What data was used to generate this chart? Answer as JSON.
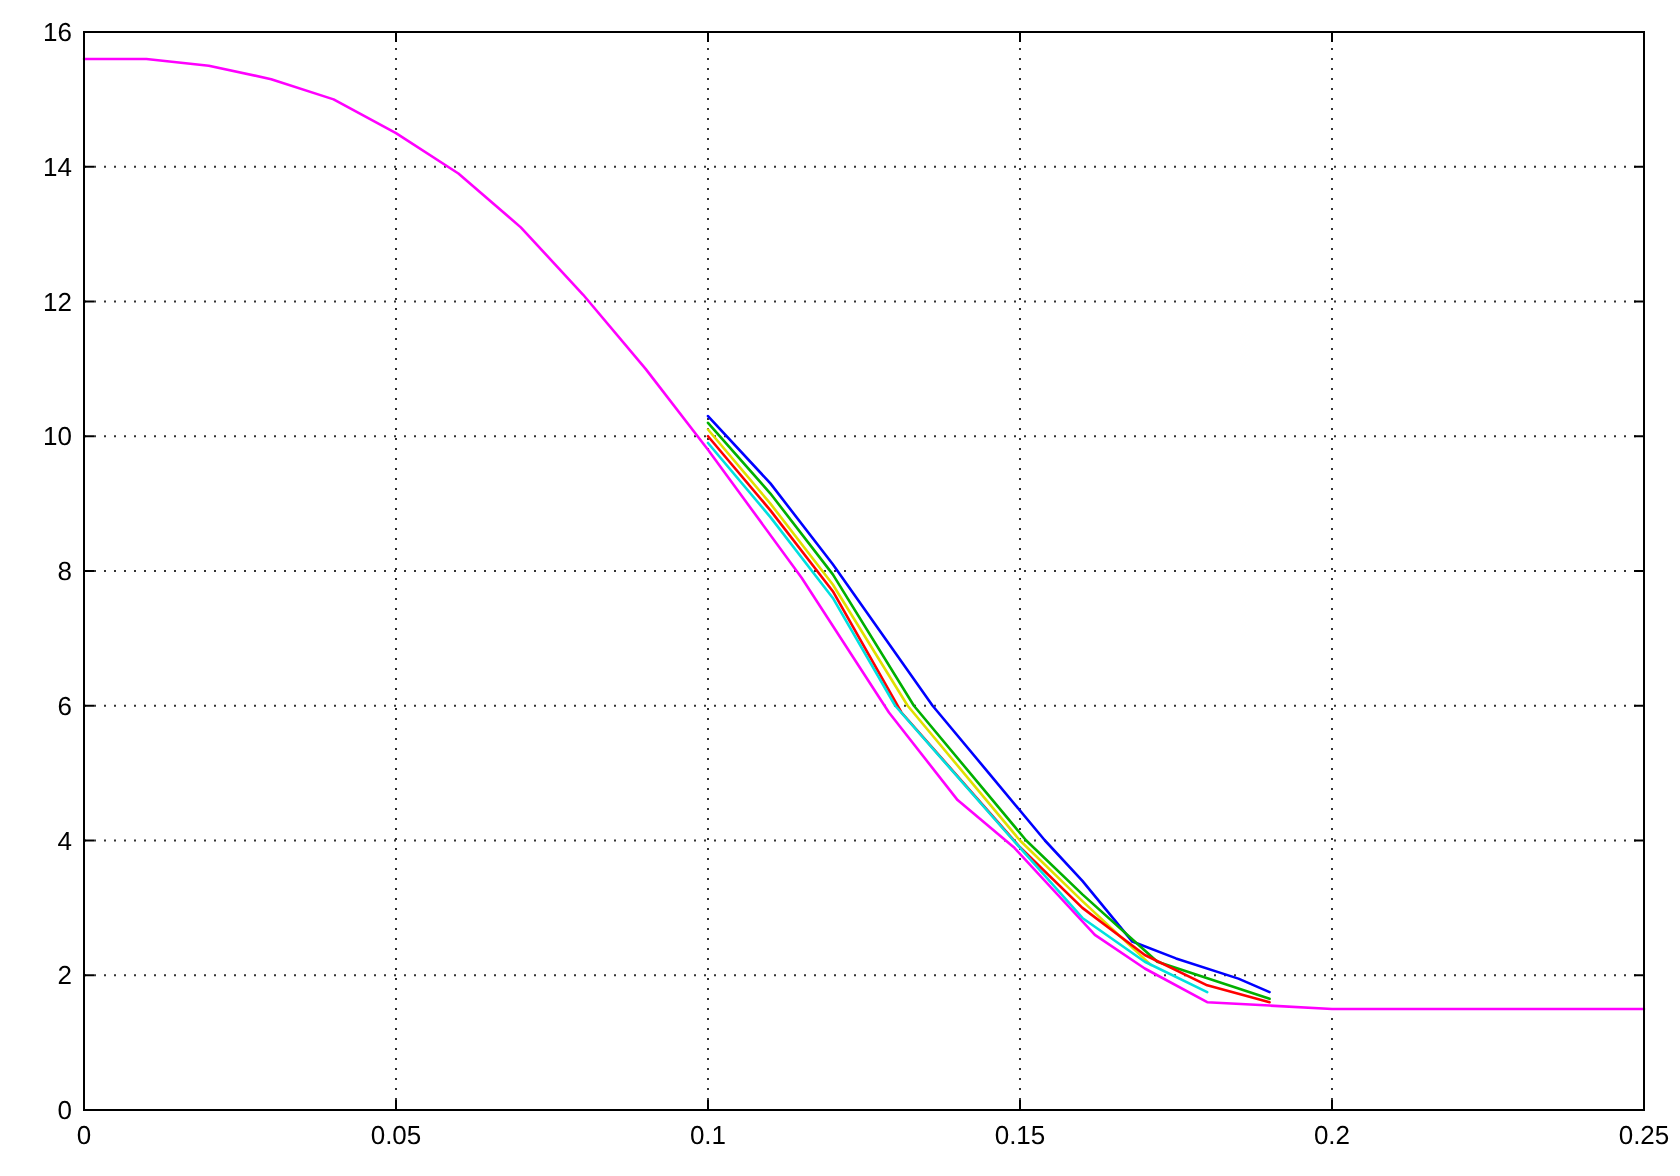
{
  "chart_data": {
    "type": "line",
    "xlim": [
      0,
      0.25
    ],
    "ylim": [
      0,
      16
    ],
    "xticks": [
      0,
      0.05,
      0.1,
      0.15,
      0.2,
      0.25
    ],
    "yticks": [
      0,
      2,
      4,
      6,
      8,
      10,
      12,
      14,
      16
    ],
    "grid": true,
    "line_style": "solid",
    "marker": "none",
    "series": [
      {
        "color": "#0000ff",
        "x": [
          0.1,
          0.11,
          0.12,
          0.136,
          0.145,
          0.154,
          0.16,
          0.168,
          0.175,
          0.185,
          0.19
        ],
        "values": [
          10.3,
          9.3,
          8.1,
          6.0,
          5.0,
          4.0,
          3.4,
          2.5,
          2.25,
          1.95,
          1.75
        ]
      },
      {
        "color": "#00b000",
        "x": [
          0.1,
          0.11,
          0.12,
          0.133,
          0.151,
          0.16,
          0.172,
          0.19
        ],
        "values": [
          10.2,
          9.15,
          7.95,
          6.0,
          4.0,
          3.2,
          2.2,
          1.65
        ]
      },
      {
        "color": "#e0e000",
        "x": [
          0.1,
          0.11,
          0.12,
          0.132,
          0.15,
          0.16,
          0.171
        ],
        "values": [
          10.1,
          9.0,
          7.8,
          6.0,
          4.0,
          3.1,
          2.15
        ]
      },
      {
        "color": "#ff0000",
        "x": [
          0.1,
          0.11,
          0.12,
          0.131,
          0.15,
          0.16,
          0.17,
          0.18,
          0.19
        ],
        "values": [
          10.0,
          8.9,
          7.7,
          5.9,
          3.9,
          3.0,
          2.3,
          1.85,
          1.6
        ]
      },
      {
        "color": "#00e0e0",
        "x": [
          0.1,
          0.11,
          0.12,
          0.13,
          0.148,
          0.16,
          0.17,
          0.18
        ],
        "values": [
          9.9,
          8.8,
          7.6,
          6.0,
          4.1,
          2.85,
          2.2,
          1.75
        ]
      },
      {
        "color": "#ff00ff",
        "x": [
          0,
          0.01,
          0.02,
          0.03,
          0.04,
          0.05,
          0.06,
          0.07,
          0.08,
          0.09,
          0.1,
          0.115,
          0.129,
          0.14,
          0.149,
          0.162,
          0.17,
          0.18,
          0.19,
          0.2,
          0.25
        ],
        "values": [
          15.6,
          15.6,
          15.5,
          15.3,
          15.0,
          14.5,
          13.9,
          13.1,
          12.1,
          11.0,
          9.8,
          7.9,
          5.9,
          4.6,
          3.9,
          2.6,
          2.1,
          1.6,
          1.55,
          1.5,
          1.5
        ]
      }
    ]
  }
}
